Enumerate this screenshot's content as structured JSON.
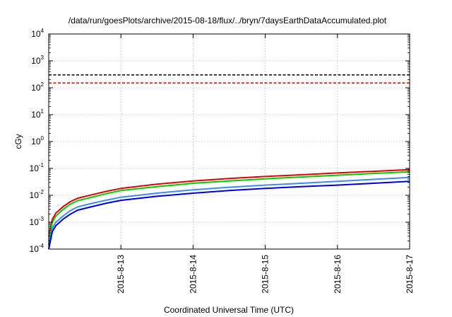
{
  "chart_data": {
    "type": "line",
    "title": "/data/run/goesPlots/archive/2015-08-18/flux/../bryn/7daysEarthDataAccumulated.plot",
    "xlabel": "Coordinated Universal Time (UTC)",
    "ylabel": "cGy",
    "y_scale": "log",
    "ylim": [
      0.0001,
      10000
    ],
    "xlim": [
      "2015-08-12T00:00",
      "2015-08-17T00:00"
    ],
    "x_ticks": [
      "2015-8-13",
      "2015-8-14",
      "2015-8-15",
      "2015-8-16",
      "2015-8-17"
    ],
    "y_ticks": [
      {
        "base": "10",
        "exp": "-4",
        "value": 0.0001
      },
      {
        "base": "10",
        "exp": "-3",
        "value": 0.001
      },
      {
        "base": "10",
        "exp": "-2",
        "value": 0.01
      },
      {
        "base": "10",
        "exp": "-1",
        "value": 0.1
      },
      {
        "base": "10",
        "exp": "0",
        "value": 1
      },
      {
        "base": "10",
        "exp": "1",
        "value": 10
      },
      {
        "base": "10",
        "exp": "2",
        "value": 100
      },
      {
        "base": "10",
        "exp": "3",
        "value": 1000
      },
      {
        "base": "10",
        "exp": "4",
        "value": 10000
      }
    ],
    "grid": true,
    "thresholds": [
      {
        "value": 300,
        "color": "#000000",
        "style": "dashed"
      },
      {
        "value": 150,
        "color": "#e00000",
        "style": "dashed"
      }
    ],
    "series": [
      {
        "color": "#e00000",
        "x": [
          "2015-08-12T00:00",
          "2015-08-12T01:12",
          "2015-08-12T02:24",
          "2015-08-12T04:48",
          "2015-08-12T07:12",
          "2015-08-12T09:36",
          "2015-08-12T14:24",
          "2015-08-12T19:12",
          "2015-08-13T00:00",
          "2015-08-13T12:00",
          "2015-08-14T00:00",
          "2015-08-14T12:00",
          "2015-08-15T00:00",
          "2015-08-15T12:00",
          "2015-08-16T00:00",
          "2015-08-16T12:00",
          "2015-08-17T00:00"
        ],
        "y": [
          0.0003,
          0.0013,
          0.0022,
          0.0038,
          0.0058,
          0.0078,
          0.0105,
          0.014,
          0.018,
          0.026,
          0.034,
          0.042,
          0.05,
          0.058,
          0.068,
          0.078,
          0.09
        ]
      },
      {
        "color": "#00cc00",
        "x": [
          "2015-08-12T00:00",
          "2015-08-12T01:12",
          "2015-08-12T02:24",
          "2015-08-12T04:48",
          "2015-08-12T07:12",
          "2015-08-12T09:36",
          "2015-08-12T14:24",
          "2015-08-12T19:12",
          "2015-08-13T00:00",
          "2015-08-13T12:00",
          "2015-08-14T00:00",
          "2015-08-14T12:00",
          "2015-08-15T00:00",
          "2015-08-15T12:00",
          "2015-08-16T00:00",
          "2015-08-16T12:00",
          "2015-08-17T00:00"
        ],
        "y": [
          0.0002,
          0.001,
          0.0017,
          0.003,
          0.0047,
          0.0063,
          0.0085,
          0.0115,
          0.015,
          0.021,
          0.028,
          0.034,
          0.041,
          0.048,
          0.056,
          0.065,
          0.075
        ]
      },
      {
        "color": "#3c8cf0",
        "x": [
          "2015-08-12T00:00",
          "2015-08-12T01:12",
          "2015-08-12T02:24",
          "2015-08-12T04:48",
          "2015-08-12T07:12",
          "2015-08-12T09:36",
          "2015-08-12T14:24",
          "2015-08-12T19:12",
          "2015-08-13T00:00",
          "2015-08-13T12:00",
          "2015-08-14T00:00",
          "2015-08-14T12:00",
          "2015-08-15T00:00",
          "2015-08-15T12:00",
          "2015-08-16T00:00",
          "2015-08-16T12:00",
          "2015-08-17T00:00"
        ],
        "y": [
          0.00015,
          0.0006,
          0.001,
          0.0017,
          0.0027,
          0.0037,
          0.005,
          0.0066,
          0.0085,
          0.012,
          0.016,
          0.02,
          0.024,
          0.028,
          0.033,
          0.039,
          0.046
        ]
      },
      {
        "color": "#0000dd",
        "x": [
          "2015-08-12T00:00",
          "2015-08-12T01:12",
          "2015-08-12T02:24",
          "2015-08-12T04:48",
          "2015-08-12T07:12",
          "2015-08-12T09:36",
          "2015-08-12T14:24",
          "2015-08-12T19:12",
          "2015-08-13T00:00",
          "2015-08-13T12:00",
          "2015-08-14T00:00",
          "2015-08-14T12:00",
          "2015-08-15T00:00",
          "2015-08-15T12:00",
          "2015-08-16T00:00",
          "2015-08-16T12:00",
          "2015-08-17T00:00"
        ],
        "y": [
          0.0001,
          0.00045,
          0.00075,
          0.0013,
          0.002,
          0.0028,
          0.0038,
          0.0051,
          0.0065,
          0.0092,
          0.012,
          0.015,
          0.018,
          0.021,
          0.024,
          0.028,
          0.033
        ]
      }
    ]
  }
}
